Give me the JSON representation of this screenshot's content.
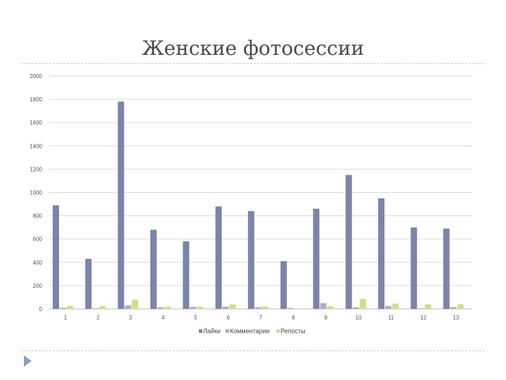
{
  "chart_data": {
    "type": "bar",
    "title": "Женские фотосессии",
    "categories": [
      "1",
      "2",
      "3",
      "4",
      "5",
      "6",
      "7",
      "8",
      "9",
      "10",
      "11",
      "12",
      "13"
    ],
    "series": [
      {
        "name": "Лайки",
        "color": "#7a86a8",
        "values": [
          890,
          430,
          1780,
          680,
          580,
          880,
          840,
          410,
          860,
          1150,
          950,
          700,
          690
        ]
      },
      {
        "name": "Комментарии",
        "color": "#a6b3c6",
        "values": [
          10,
          5,
          30,
          15,
          18,
          20,
          15,
          8,
          50,
          15,
          25,
          5,
          15
        ]
      },
      {
        "name": "Репосты",
        "color": "#d2dd8c",
        "values": [
          25,
          25,
          80,
          20,
          20,
          40,
          22,
          5,
          25,
          85,
          45,
          40,
          40
        ]
      }
    ],
    "yticks": [
      "0",
      "200",
      "400",
      "600",
      "800",
      "1000",
      "1200",
      "1400",
      "1600",
      "1800",
      "2000"
    ],
    "ylim": [
      0,
      2000
    ],
    "xlabel": "",
    "ylabel": "",
    "grid": true,
    "legend": "bottom"
  }
}
